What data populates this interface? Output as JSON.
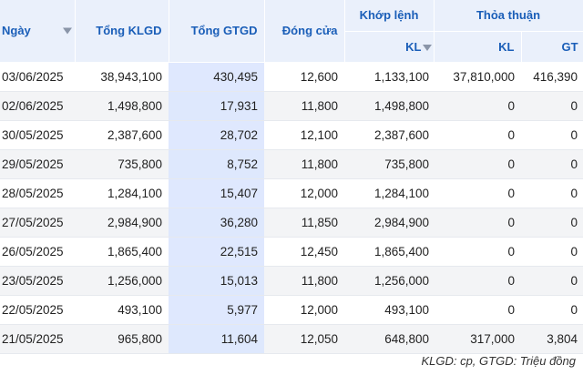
{
  "table": {
    "headers": {
      "date": "Ngày",
      "total_volume": "Tổng KLGD",
      "total_value": "Tổng GTGD",
      "close": "Đóng cửa",
      "matched_group": "Khớp lệnh",
      "matched_kl": "KL",
      "negotiated_group": "Thỏa thuận",
      "negotiated_kl": "KL",
      "negotiated_gt": "GT"
    },
    "rows": [
      {
        "date": "03/06/2025",
        "total_volume": "38,943,100",
        "total_value": "430,495",
        "close": "12,600",
        "matched_kl": "1,133,100",
        "negotiated_kl": "37,810,000",
        "negotiated_gt": "416,390"
      },
      {
        "date": "02/06/2025",
        "total_volume": "1,498,800",
        "total_value": "17,931",
        "close": "11,800",
        "matched_kl": "1,498,800",
        "negotiated_kl": "0",
        "negotiated_gt": "0"
      },
      {
        "date": "30/05/2025",
        "total_volume": "2,387,600",
        "total_value": "28,702",
        "close": "12,100",
        "matched_kl": "2,387,600",
        "negotiated_kl": "0",
        "negotiated_gt": "0"
      },
      {
        "date": "29/05/2025",
        "total_volume": "735,800",
        "total_value": "8,752",
        "close": "11,800",
        "matched_kl": "735,800",
        "negotiated_kl": "0",
        "negotiated_gt": "0"
      },
      {
        "date": "28/05/2025",
        "total_volume": "1,284,100",
        "total_value": "15,407",
        "close": "12,000",
        "matched_kl": "1,284,100",
        "negotiated_kl": "0",
        "negotiated_gt": "0"
      },
      {
        "date": "27/05/2025",
        "total_volume": "2,984,900",
        "total_value": "36,280",
        "close": "11,850",
        "matched_kl": "2,984,900",
        "negotiated_kl": "0",
        "negotiated_gt": "0"
      },
      {
        "date": "26/05/2025",
        "total_volume": "1,865,400",
        "total_value": "22,515",
        "close": "12,450",
        "matched_kl": "1,865,400",
        "negotiated_kl": "0",
        "negotiated_gt": "0"
      },
      {
        "date": "23/05/2025",
        "total_volume": "1,256,000",
        "total_value": "15,013",
        "close": "11,800",
        "matched_kl": "1,256,000",
        "negotiated_kl": "0",
        "negotiated_gt": "0"
      },
      {
        "date": "22/05/2025",
        "total_volume": "493,100",
        "total_value": "5,977",
        "close": "12,000",
        "matched_kl": "493,100",
        "negotiated_kl": "0",
        "negotiated_gt": "0"
      },
      {
        "date": "21/05/2025",
        "total_volume": "965,800",
        "total_value": "11,604",
        "close": "12,050",
        "matched_kl": "648,800",
        "negotiated_kl": "317,000",
        "negotiated_gt": "3,804"
      }
    ]
  },
  "note": "KLGD: cp, GTGD: Triệu đồng",
  "icons": {
    "date_sort": "sort-down-icon",
    "matched_kl_sort": "sort-down-icon"
  },
  "colors": {
    "header_bg": "#eaf0fb",
    "header_text": "#1a5eb8",
    "highlight_column": "#dfe8fe",
    "stripe": "#f3f4f6"
  }
}
